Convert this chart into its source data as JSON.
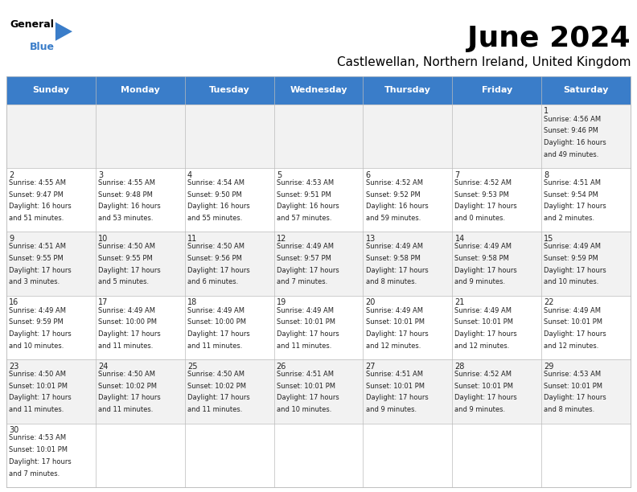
{
  "title": "June 2024",
  "subtitle": "Castlewellan, Northern Ireland, United Kingdom",
  "header_color": "#3A7DC9",
  "header_text_color": "#FFFFFF",
  "background_color": "#FFFFFF",
  "row_colors": [
    "#F2F2F2",
    "#FFFFFF"
  ],
  "border_color": "#BBBBBB",
  "text_color": "#222222",
  "day_headers": [
    "Sunday",
    "Monday",
    "Tuesday",
    "Wednesday",
    "Thursday",
    "Friday",
    "Saturday"
  ],
  "days": [
    {
      "date": 1,
      "col": 6,
      "row": 0,
      "sunrise": "4:56 AM",
      "sunset": "9:46 PM",
      "daylight_l1": "16 hours",
      "daylight_l2": "and 49 minutes."
    },
    {
      "date": 2,
      "col": 0,
      "row": 1,
      "sunrise": "4:55 AM",
      "sunset": "9:47 PM",
      "daylight_l1": "16 hours",
      "daylight_l2": "and 51 minutes."
    },
    {
      "date": 3,
      "col": 1,
      "row": 1,
      "sunrise": "4:55 AM",
      "sunset": "9:48 PM",
      "daylight_l1": "16 hours",
      "daylight_l2": "and 53 minutes."
    },
    {
      "date": 4,
      "col": 2,
      "row": 1,
      "sunrise": "4:54 AM",
      "sunset": "9:50 PM",
      "daylight_l1": "16 hours",
      "daylight_l2": "and 55 minutes."
    },
    {
      "date": 5,
      "col": 3,
      "row": 1,
      "sunrise": "4:53 AM",
      "sunset": "9:51 PM",
      "daylight_l1": "16 hours",
      "daylight_l2": "and 57 minutes."
    },
    {
      "date": 6,
      "col": 4,
      "row": 1,
      "sunrise": "4:52 AM",
      "sunset": "9:52 PM",
      "daylight_l1": "16 hours",
      "daylight_l2": "and 59 minutes."
    },
    {
      "date": 7,
      "col": 5,
      "row": 1,
      "sunrise": "4:52 AM",
      "sunset": "9:53 PM",
      "daylight_l1": "17 hours",
      "daylight_l2": "and 0 minutes."
    },
    {
      "date": 8,
      "col": 6,
      "row": 1,
      "sunrise": "4:51 AM",
      "sunset": "9:54 PM",
      "daylight_l1": "17 hours",
      "daylight_l2": "and 2 minutes."
    },
    {
      "date": 9,
      "col": 0,
      "row": 2,
      "sunrise": "4:51 AM",
      "sunset": "9:55 PM",
      "daylight_l1": "17 hours",
      "daylight_l2": "and 3 minutes."
    },
    {
      "date": 10,
      "col": 1,
      "row": 2,
      "sunrise": "4:50 AM",
      "sunset": "9:55 PM",
      "daylight_l1": "17 hours",
      "daylight_l2": "and 5 minutes."
    },
    {
      "date": 11,
      "col": 2,
      "row": 2,
      "sunrise": "4:50 AM",
      "sunset": "9:56 PM",
      "daylight_l1": "17 hours",
      "daylight_l2": "and 6 minutes."
    },
    {
      "date": 12,
      "col": 3,
      "row": 2,
      "sunrise": "4:49 AM",
      "sunset": "9:57 PM",
      "daylight_l1": "17 hours",
      "daylight_l2": "and 7 minutes."
    },
    {
      "date": 13,
      "col": 4,
      "row": 2,
      "sunrise": "4:49 AM",
      "sunset": "9:58 PM",
      "daylight_l1": "17 hours",
      "daylight_l2": "and 8 minutes."
    },
    {
      "date": 14,
      "col": 5,
      "row": 2,
      "sunrise": "4:49 AM",
      "sunset": "9:58 PM",
      "daylight_l1": "17 hours",
      "daylight_l2": "and 9 minutes."
    },
    {
      "date": 15,
      "col": 6,
      "row": 2,
      "sunrise": "4:49 AM",
      "sunset": "9:59 PM",
      "daylight_l1": "17 hours",
      "daylight_l2": "and 10 minutes."
    },
    {
      "date": 16,
      "col": 0,
      "row": 3,
      "sunrise": "4:49 AM",
      "sunset": "9:59 PM",
      "daylight_l1": "17 hours",
      "daylight_l2": "and 10 minutes."
    },
    {
      "date": 17,
      "col": 1,
      "row": 3,
      "sunrise": "4:49 AM",
      "sunset": "10:00 PM",
      "daylight_l1": "17 hours",
      "daylight_l2": "and 11 minutes."
    },
    {
      "date": 18,
      "col": 2,
      "row": 3,
      "sunrise": "4:49 AM",
      "sunset": "10:00 PM",
      "daylight_l1": "17 hours",
      "daylight_l2": "and 11 minutes."
    },
    {
      "date": 19,
      "col": 3,
      "row": 3,
      "sunrise": "4:49 AM",
      "sunset": "10:01 PM",
      "daylight_l1": "17 hours",
      "daylight_l2": "and 11 minutes."
    },
    {
      "date": 20,
      "col": 4,
      "row": 3,
      "sunrise": "4:49 AM",
      "sunset": "10:01 PM",
      "daylight_l1": "17 hours",
      "daylight_l2": "and 12 minutes."
    },
    {
      "date": 21,
      "col": 5,
      "row": 3,
      "sunrise": "4:49 AM",
      "sunset": "10:01 PM",
      "daylight_l1": "17 hours",
      "daylight_l2": "and 12 minutes."
    },
    {
      "date": 22,
      "col": 6,
      "row": 3,
      "sunrise": "4:49 AM",
      "sunset": "10:01 PM",
      "daylight_l1": "17 hours",
      "daylight_l2": "and 12 minutes."
    },
    {
      "date": 23,
      "col": 0,
      "row": 4,
      "sunrise": "4:50 AM",
      "sunset": "10:01 PM",
      "daylight_l1": "17 hours",
      "daylight_l2": "and 11 minutes."
    },
    {
      "date": 24,
      "col": 1,
      "row": 4,
      "sunrise": "4:50 AM",
      "sunset": "10:02 PM",
      "daylight_l1": "17 hours",
      "daylight_l2": "and 11 minutes."
    },
    {
      "date": 25,
      "col": 2,
      "row": 4,
      "sunrise": "4:50 AM",
      "sunset": "10:02 PM",
      "daylight_l1": "17 hours",
      "daylight_l2": "and 11 minutes."
    },
    {
      "date": 26,
      "col": 3,
      "row": 4,
      "sunrise": "4:51 AM",
      "sunset": "10:01 PM",
      "daylight_l1": "17 hours",
      "daylight_l2": "and 10 minutes."
    },
    {
      "date": 27,
      "col": 4,
      "row": 4,
      "sunrise": "4:51 AM",
      "sunset": "10:01 PM",
      "daylight_l1": "17 hours",
      "daylight_l2": "and 9 minutes."
    },
    {
      "date": 28,
      "col": 5,
      "row": 4,
      "sunrise": "4:52 AM",
      "sunset": "10:01 PM",
      "daylight_l1": "17 hours",
      "daylight_l2": "and 9 minutes."
    },
    {
      "date": 29,
      "col": 6,
      "row": 4,
      "sunrise": "4:53 AM",
      "sunset": "10:01 PM",
      "daylight_l1": "17 hours",
      "daylight_l2": "and 8 minutes."
    },
    {
      "date": 30,
      "col": 0,
      "row": 5,
      "sunrise": "4:53 AM",
      "sunset": "10:01 PM",
      "daylight_l1": "17 hours",
      "daylight_l2": "and 7 minutes."
    }
  ],
  "figwidth": 7.92,
  "figheight": 6.12,
  "dpi": 100,
  "title_fontsize": 26,
  "subtitle_fontsize": 11,
  "header_fontsize": 8,
  "date_fontsize": 7,
  "cell_fontsize": 6
}
